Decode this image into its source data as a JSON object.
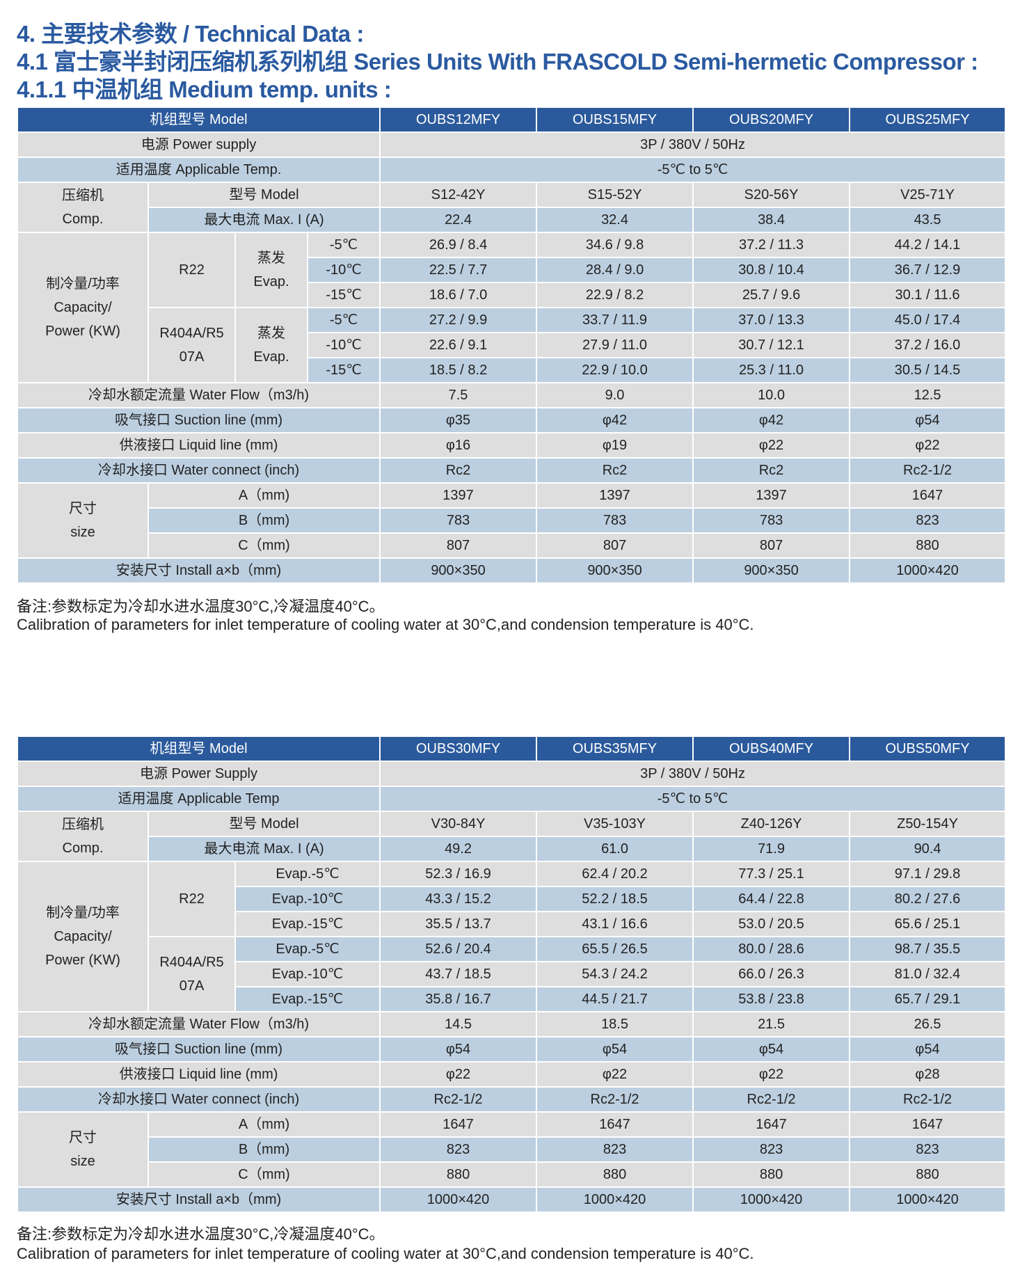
{
  "titles": [
    "4. 主要技术参数 / Technical Data :",
    "4.1 富士豪半封闭压缩机系列机组 Series Units With FRASCOLD Semi-hermetic Compressor :",
    "4.1.1 中温机组 Medium temp. units :"
  ],
  "colors": {
    "title": "#2a5aa0",
    "header_bg": "#2b5a9c",
    "row_gray": "#dedede",
    "row_blue": "#bccfe0"
  },
  "tables": [
    {
      "header_label": "机组型号 Model",
      "models": [
        "OUBS12MFY",
        "OUBS15MFY",
        "OUBS20MFY",
        "OUBS25MFY"
      ],
      "power_label": "电源 Power supply",
      "power_value": "3P / 380V / 50Hz",
      "temp_label": "适用温度 Applicable Temp.",
      "temp_value": "-5℃ to 5℃",
      "comp_label": "压缩机\nComp.",
      "comp_model_label": "型号 Model",
      "comp_models": [
        "S12-42Y",
        "S15-52Y",
        "S20-56Y",
        "V25-71Y"
      ],
      "max_current_label": "最大电流 Max. I (A)",
      "max_current": [
        "22.4",
        "32.4",
        "38.4",
        "43.5"
      ],
      "capacity_label": "制冷量/功率\nCapacity/\nPower (KW)",
      "evap_label": "蒸发\nEvap.",
      "refrigerants": [
        {
          "name": "R22",
          "rows": [
            {
              "evap": "-5℃",
              "values": [
                "26.9 / 8.4",
                "34.6 / 9.8",
                "37.2 / 11.3",
                "44.2 / 14.1"
              ]
            },
            {
              "evap": "-10℃",
              "values": [
                "22.5 / 7.7",
                "28.4 / 9.0",
                "30.8 / 10.4",
                "36.7 / 12.9"
              ]
            },
            {
              "evap": "-15℃",
              "values": [
                "18.6 / 7.0",
                "22.9 / 8.2",
                "25.7 / 9.6",
                "30.1 / 11.6"
              ]
            }
          ]
        },
        {
          "name": "R404A/R5\n07A",
          "rows": [
            {
              "evap": "-5℃",
              "values": [
                "27.2 / 9.9",
                "33.7 / 11.9",
                "37.0 / 13.3",
                "45.0 / 17.4"
              ]
            },
            {
              "evap": "-10℃",
              "values": [
                "22.6 / 9.1",
                "27.9 / 11.0",
                "30.7 / 12.1",
                "37.2 / 16.0"
              ]
            },
            {
              "evap": "-15℃",
              "values": [
                "18.5 / 8.2",
                "22.9 / 10.0",
                "25.3 / 11.0",
                "30.5 / 14.5"
              ]
            }
          ]
        }
      ],
      "rows": [
        {
          "label": "冷却水额定流量 Water Flow（m3/h)",
          "values": [
            "7.5",
            "9.0",
            "10.0",
            "12.5"
          ]
        },
        {
          "label": "吸气接口 Suction line (mm)",
          "values": [
            "φ35",
            "φ42",
            "φ42",
            "φ54"
          ]
        },
        {
          "label": "供液接口 Liquid line (mm)",
          "values": [
            "φ16",
            "φ19",
            "φ22",
            "φ22"
          ]
        },
        {
          "label": "冷却水接口 Water connect (inch)",
          "values": [
            "Rc2",
            "Rc2",
            "Rc2",
            "Rc2-1/2"
          ]
        }
      ],
      "size_label": "尺寸\nsize",
      "size_rows": [
        {
          "label": "A（mm)",
          "values": [
            "1397",
            "1397",
            "1397",
            "1647"
          ]
        },
        {
          "label": "B（mm)",
          "values": [
            "783",
            "783",
            "783",
            "823"
          ]
        },
        {
          "label": "C（mm)",
          "values": [
            "807",
            "807",
            "807",
            "880"
          ]
        }
      ],
      "install": {
        "label": "安装尺寸  Install    a×b（mm)",
        "values": [
          "900×350",
          "900×350",
          "900×350",
          "1000×420"
        ]
      }
    },
    {
      "header_label": "机组型号 Model",
      "models": [
        "OUBS30MFY",
        "OUBS35MFY",
        "OUBS40MFY",
        "OUBS50MFY"
      ],
      "power_label": "电源 Power Supply",
      "power_value": "3P / 380V / 50Hz",
      "temp_label": "适用温度 Applicable Temp",
      "temp_value": "-5℃ to 5℃",
      "comp_label": "压缩机\nComp.",
      "comp_model_label": "型号 Model",
      "comp_models": [
        "V30-84Y",
        "V35-103Y",
        "Z40-126Y",
        "Z50-154Y"
      ],
      "max_current_label": "最大电流 Max. I (A)",
      "max_current": [
        "49.2",
        "61.0",
        "71.9",
        "90.4"
      ],
      "capacity_label": "制冷量/功率\nCapacity/\nPower (KW)",
      "refrigerants": [
        {
          "name": "R22",
          "rows": [
            {
              "evap": "Evap.-5℃",
              "values": [
                "52.3 / 16.9",
                "62.4 / 20.2",
                "77.3 / 25.1",
                "97.1 / 29.8"
              ]
            },
            {
              "evap": "Evap.-10℃",
              "values": [
                "43.3 / 15.2",
                "52.2 / 18.5",
                "64.4 / 22.8",
                "80.2 / 27.6"
              ]
            },
            {
              "evap": "Evap.-15℃",
              "values": [
                "35.5 / 13.7",
                "43.1 / 16.6",
                "53.0 / 20.5",
                "65.6 / 25.1"
              ]
            }
          ]
        },
        {
          "name": "R404A/R5\n07A",
          "rows": [
            {
              "evap": "Evap.-5℃",
              "values": [
                "52.6 / 20.4",
                "65.5 / 26.5",
                "80.0 / 28.6",
                "98.7 / 35.5"
              ]
            },
            {
              "evap": "Evap.-10℃",
              "values": [
                "43.7 / 18.5",
                "54.3 / 24.2",
                "66.0 / 26.3",
                "81.0 / 32.4"
              ]
            },
            {
              "evap": "Evap.-15℃",
              "values": [
                "35.8 / 16.7",
                "44.5 / 21.7",
                "53.8 / 23.8",
                "65.7 / 29.1"
              ]
            }
          ]
        }
      ],
      "rows": [
        {
          "label": "冷却水额定流量 Water Flow（m3/h)",
          "values": [
            "14.5",
            "18.5",
            "21.5",
            "26.5"
          ]
        },
        {
          "label": "吸气接口 Suction line (mm)",
          "values": [
            "φ54",
            "φ54",
            "φ54",
            "φ54"
          ]
        },
        {
          "label": "供液接口 Liquid line (mm)",
          "values": [
            "φ22",
            "φ22",
            "φ22",
            "φ28"
          ]
        },
        {
          "label": "冷却水接口 Water connect (inch)",
          "values": [
            "Rc2-1/2",
            "Rc2-1/2",
            "Rc2-1/2",
            "Rc2-1/2"
          ]
        }
      ],
      "size_label": "尺寸\nsize",
      "size_rows": [
        {
          "label": "A（mm)",
          "values": [
            "1647",
            "1647",
            "1647",
            "1647"
          ]
        },
        {
          "label": "B（mm)",
          "values": [
            "823",
            "823",
            "823",
            "823"
          ]
        },
        {
          "label": "C（mm)",
          "values": [
            "880",
            "880",
            "880",
            "880"
          ]
        }
      ],
      "install": {
        "label": "安装尺寸 Install a×b（mm)",
        "values": [
          "1000×420",
          "1000×420",
          "1000×420",
          "1000×420"
        ]
      }
    }
  ],
  "notes": [
    {
      "cn": "备注:参数标定为冷却水进水温度30°C,冷凝温度40°C。",
      "en": "Calibration of parameters for inlet temperature of cooling water at 30°C,and condension temperature is 40°C."
    },
    {
      "cn": "备注:参数标定为冷却水进水温度30°C,冷凝温度40°C。",
      "en": "Calibration of parameters for inlet temperature of cooling water at 30°C,and condension temperature is 40°C."
    }
  ]
}
